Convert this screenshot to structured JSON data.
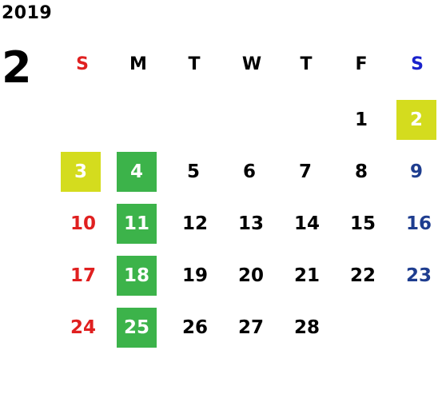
{
  "calendar": {
    "year": "2019",
    "month": "2",
    "weekdays": [
      "S",
      "M",
      "T",
      "W",
      "T",
      "F",
      "S"
    ],
    "colors": {
      "sunday": "#e02020",
      "saturday_header": "#1a22cc",
      "saturday": "#1e3d8f",
      "weekday": "#000000",
      "highlight_yellow": "#d4dc1e",
      "highlight_green": "#3cb34a"
    },
    "weeks": [
      [
        "",
        "",
        "",
        "",
        "",
        "1",
        "2"
      ],
      [
        "3",
        "4",
        "5",
        "6",
        "7",
        "8",
        "9"
      ],
      [
        "10",
        "11",
        "12",
        "13",
        "14",
        "15",
        "16"
      ],
      [
        "17",
        "18",
        "19",
        "20",
        "21",
        "22",
        "23"
      ],
      [
        "24",
        "25",
        "26",
        "27",
        "28",
        "",
        ""
      ]
    ],
    "highlights": {
      "yellow": [
        "2",
        "3"
      ],
      "green": [
        "4",
        "11",
        "18",
        "25"
      ]
    }
  }
}
